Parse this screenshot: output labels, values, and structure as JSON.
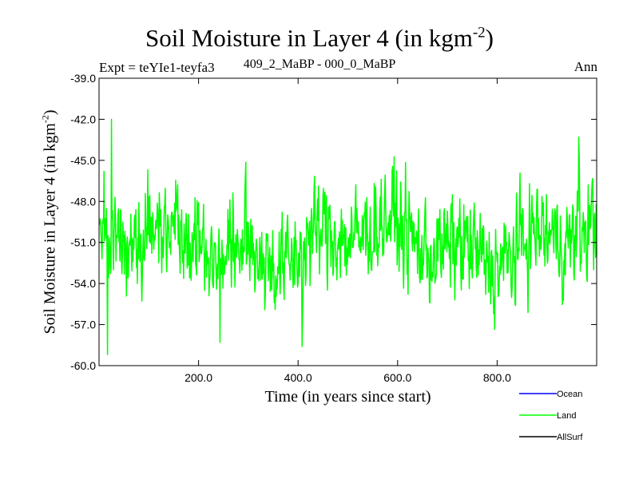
{
  "chart_data": {
    "type": "line",
    "title": "Soil Moisture in Layer 4 (in kgm",
    "title_superscript": "-2",
    "title_close": ")",
    "subtitle_left": "Expt = teYIe1-teyfa3",
    "subtitle_center": "409_2_MaBP - 000_0_MaBP",
    "subtitle_right": "Ann",
    "xlabel": "Time (in years since start)",
    "ylabel": "Soil Moisture in Layer 4 (in kgm",
    "ylabel_superscript": "-2",
    "ylabel_close": ")",
    "xlim": [
      0,
      1000
    ],
    "ylim": [
      -60,
      -39
    ],
    "xticks": [
      200,
      400,
      600,
      800
    ],
    "xtick_labels": [
      "200.0",
      "400.0",
      "600.0",
      "800.0"
    ],
    "yticks": [
      -60,
      -57,
      -54,
      -51,
      -48,
      -45,
      -42,
      -39
    ],
    "ytick_labels": [
      "-60.0",
      "-57.0",
      "-54.0",
      "-51.0",
      "-48.0",
      "-45.0",
      "-42.0",
      "-39.0"
    ],
    "legend": [
      {
        "name": "Ocean",
        "color": "#0000ff"
      },
      {
        "name": "Land",
        "color": "#00ff00"
      },
      {
        "name": "AllSurf",
        "color": "#000000"
      }
    ],
    "series": [
      {
        "name": "Land",
        "color": "#00ff00",
        "x_start": 1,
        "x_step": 1,
        "count": 1000,
        "mean": -51.0,
        "min": -59.2,
        "max": -41.9,
        "key_points": [
          {
            "x": 10,
            "y": -45.8
          },
          {
            "x": 17,
            "y": -59.2
          },
          {
            "x": 25,
            "y": -42.0
          },
          {
            "x": 243,
            "y": -58.3
          },
          {
            "x": 408,
            "y": -58.6
          },
          {
            "x": 964,
            "y": -43.3
          }
        ]
      }
    ]
  }
}
